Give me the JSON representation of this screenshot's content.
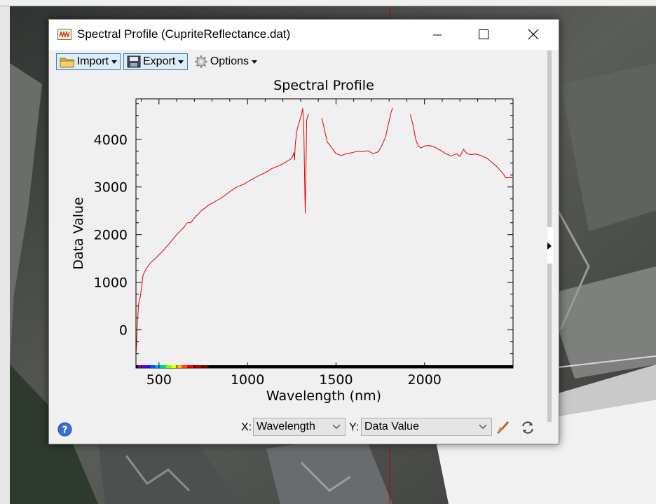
{
  "window": {
    "title": "Spectral Profile (CupriteReflectance.dat)"
  },
  "toolbar": {
    "import_label": "Import",
    "export_label": "Export",
    "options_label": "Options"
  },
  "chart_data": {
    "type": "line",
    "title": "Spectral Profile",
    "xlabel": "Wavelength (nm)",
    "ylabel": "Data Value",
    "xlim": [
      370,
      2500
    ],
    "ylim": [
      -800,
      4850
    ],
    "x_ticks": [
      500,
      1000,
      1500,
      2000
    ],
    "y_ticks": [
      0,
      1000,
      2000,
      3000,
      4000
    ],
    "grid": false,
    "line_color": "#e00000",
    "segments": [
      {
        "x": [
          372,
          378,
          385,
          395,
          410,
          430,
          455,
          480,
          520,
          560,
          600,
          640,
          660,
          680,
          700,
          740,
          780,
          820,
          860,
          900,
          940,
          980,
          1020,
          1060,
          1100,
          1140,
          1180,
          1220,
          1250,
          1262,
          1266,
          1270,
          1280,
          1295,
          1305,
          1312,
          1318,
          1322,
          1326,
          1330,
          1334,
          1338,
          1342,
          1346
        ],
        "y": [
          -450,
          150,
          550,
          700,
          1150,
          1300,
          1420,
          1500,
          1650,
          1820,
          2000,
          2150,
          2250,
          2250,
          2350,
          2500,
          2620,
          2700,
          2790,
          2900,
          3000,
          3060,
          3150,
          3230,
          3300,
          3390,
          3450,
          3530,
          3600,
          3720,
          3570,
          3900,
          4200,
          4400,
          4520,
          4650,
          4300,
          3300,
          2450,
          3300,
          4400,
          4450,
          4500,
          4530
        ]
      },
      {
        "x": [
          1420,
          1435,
          1450,
          1465,
          1480,
          1500,
          1530,
          1560,
          1590,
          1620,
          1650,
          1680,
          1710,
          1740,
          1760,
          1780,
          1795,
          1810,
          1820
        ],
        "y": [
          4450,
          4200,
          3950,
          3880,
          3800,
          3700,
          3660,
          3700,
          3720,
          3750,
          3740,
          3760,
          3700,
          3740,
          3880,
          4050,
          4300,
          4550,
          4660
        ]
      },
      {
        "x": [
          1920,
          1935,
          1950,
          1965,
          1980,
          2000,
          2030,
          2060,
          2090,
          2120,
          2150,
          2180,
          2200,
          2220,
          2240,
          2260,
          2290,
          2320,
          2350,
          2380,
          2410,
          2440,
          2460,
          2480,
          2500
        ],
        "y": [
          4520,
          4300,
          4000,
          3860,
          3820,
          3860,
          3870,
          3830,
          3770,
          3700,
          3650,
          3700,
          3640,
          3790,
          3700,
          3680,
          3690,
          3660,
          3610,
          3520,
          3420,
          3300,
          3190,
          3200,
          3190
        ]
      }
    ]
  },
  "x_axis": {
    "label": "X:",
    "selected": "Wavelength"
  },
  "y_axis": {
    "label": "Y:",
    "selected": "Data Value"
  },
  "icons": {
    "help": "help-icon",
    "edit_properties": "edit-properties-icon",
    "reset": "reset-icon"
  }
}
